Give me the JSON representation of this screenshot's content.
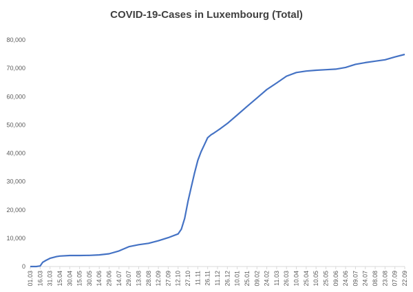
{
  "chart_data": {
    "type": "line",
    "title": "COVID-19-Cases in Luxembourg (Total)",
    "xlabel": "",
    "ylabel": "",
    "ylim": [
      0,
      80000
    ],
    "y_ticks": [
      "0",
      "10,000",
      "20,000",
      "30,000",
      "40,000",
      "50,000",
      "60,000",
      "70,000",
      "80,000"
    ],
    "x_ticks": [
      "01.03",
      "16.03",
      "31.03",
      "15.04",
      "30.04",
      "15.05",
      "30.05",
      "14.06",
      "29.06",
      "14.07",
      "29.07",
      "13.08",
      "28.08",
      "12.09",
      "27.09",
      "12.10",
      "27.10",
      "11.11",
      "26.11",
      "11.12",
      "26.12",
      "10.01",
      "25.01",
      "09.02",
      "24.02",
      "11.03",
      "26.03",
      "10.04",
      "25.04",
      "10.05",
      "25.05",
      "09.06",
      "24.06",
      "09.07",
      "24.07",
      "08.08",
      "23.08",
      "07.09",
      "22.09"
    ],
    "gridlines": false,
    "legend": "none",
    "line_color": "#4472c4",
    "series": [
      {
        "x": [
          "01.03",
          "10.03",
          "16.03",
          "20.03",
          "25.03",
          "31.03",
          "10.04",
          "15.04",
          "30.04",
          "15.05",
          "30.05",
          "14.06",
          "29.06",
          "14.07",
          "29.07",
          "13.08",
          "28.08",
          "12.09",
          "27.09",
          "12.10",
          "17.10",
          "22.10",
          "27.10",
          "01.11",
          "06.11",
          "11.11",
          "16.11",
          "21.11",
          "26.11",
          "01.12",
          "06.12",
          "11.12",
          "16.12",
          "26.12",
          "10.01",
          "25.01",
          "09.02",
          "24.02",
          "11.03",
          "26.03",
          "10.04",
          "25.04",
          "10.05",
          "25.05",
          "09.06",
          "24.06",
          "09.07",
          "24.07",
          "08.08",
          "23.08",
          "07.09",
          "22.09"
        ],
        "values": [
          0,
          0,
          200,
          1500,
          2200,
          2900,
          3500,
          3700,
          3900,
          3900,
          3950,
          4100,
          4500,
          5500,
          7000,
          7700,
          8200,
          9100,
          10200,
          11500,
          13200,
          17000,
          23000,
          28000,
          33000,
          37500,
          40500,
          43000,
          45500,
          46500,
          47200,
          48000,
          48800,
          50500,
          53500,
          56500,
          59500,
          62500,
          64800,
          67200,
          68500,
          69000,
          69300,
          69500,
          69700,
          70300,
          71400,
          72000,
          72500,
          73000,
          74000,
          74900
        ]
      }
    ]
  }
}
